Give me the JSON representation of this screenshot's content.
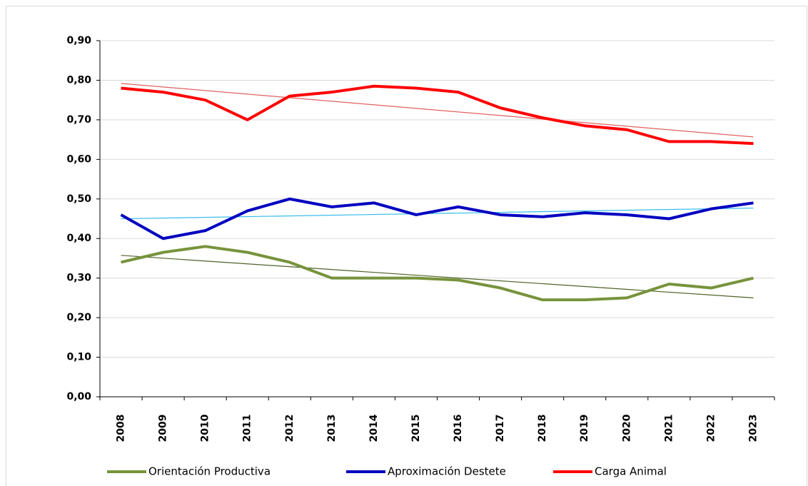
{
  "chart_data": {
    "type": "line",
    "categories": [
      "2008",
      "2009",
      "2010",
      "2011",
      "2012",
      "2013",
      "2014",
      "2015",
      "2016",
      "2017",
      "2018",
      "2019",
      "2020",
      "2021",
      "2022",
      "2023"
    ],
    "series": [
      {
        "name": "Orientación Productiva",
        "color": "#77933c",
        "trend_color": "#4f6228",
        "values": [
          0.34,
          0.365,
          0.38,
          0.365,
          0.34,
          0.3,
          0.3,
          0.3,
          0.295,
          0.275,
          0.245,
          0.245,
          0.25,
          0.285,
          0.275,
          0.3
        ]
      },
      {
        "name": "Aproximación Destete",
        "color": "#0000c0",
        "trend_color": "#33bbee",
        "values": [
          0.46,
          0.4,
          0.42,
          0.47,
          0.5,
          0.48,
          0.49,
          0.46,
          0.48,
          0.46,
          0.455,
          0.465,
          0.46,
          0.45,
          0.475,
          0.49
        ]
      },
      {
        "name": "Carga Animal",
        "color": "#ff0000",
        "trend_color": "#e06060",
        "values": [
          0.78,
          0.77,
          0.75,
          0.7,
          0.76,
          0.77,
          0.785,
          0.78,
          0.77,
          0.73,
          0.705,
          0.685,
          0.675,
          0.645,
          0.645,
          0.64
        ]
      }
    ],
    "trendline": true,
    "ylim": [
      0,
      0.9
    ],
    "yticks": [
      {
        "value": 0,
        "label": "0,00"
      },
      {
        "value": 0.1,
        "label": "0,10"
      },
      {
        "value": 0.2,
        "label": "0,20"
      },
      {
        "value": 0.3,
        "label": "0,30"
      },
      {
        "value": 0.4,
        "label": "0,40"
      },
      {
        "value": 0.5,
        "label": "0,50"
      },
      {
        "value": 0.6,
        "label": "0,60"
      },
      {
        "value": 0.7,
        "label": "0,70"
      },
      {
        "value": 0.8,
        "label": "0,80"
      },
      {
        "value": 0.9,
        "label": "0,90"
      }
    ],
    "grid": true,
    "legend": "bottom"
  }
}
